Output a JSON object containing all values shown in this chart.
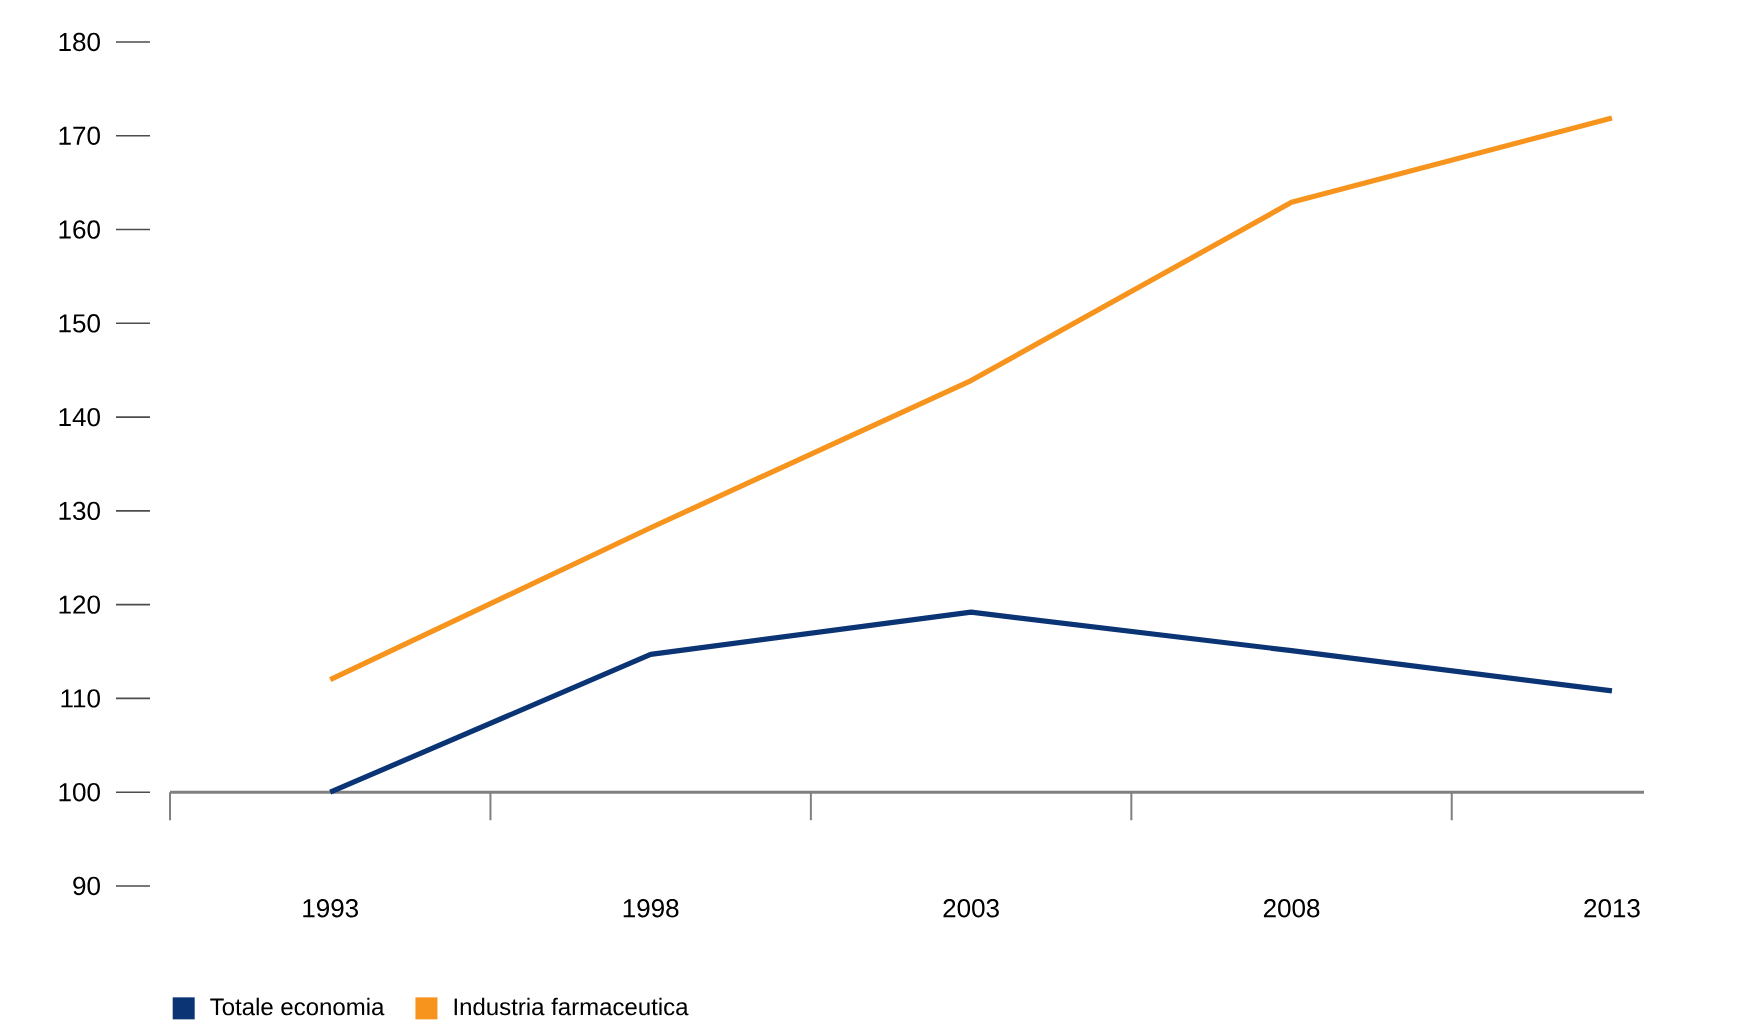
{
  "chart_data": {
    "type": "line",
    "categories": [
      "1993",
      "1998",
      "2003",
      "2008",
      "2013"
    ],
    "series": [
      {
        "name": "Totale economia",
        "color": "#0b3474",
        "values": [
          100,
          114.7,
          119.2,
          115.1,
          110.8
        ]
      },
      {
        "name": "Industria farmaceutica",
        "color": "#f7941d",
        "values": [
          112,
          128.2,
          143.9,
          162.9,
          171.9
        ]
      }
    ],
    "ylim": [
      90,
      180
    ],
    "yticks": [
      90,
      100,
      110,
      120,
      130,
      140,
      150,
      160,
      170,
      180
    ],
    "ref_lines": [
      {
        "axis": "y",
        "value": 100,
        "color": "#808080"
      }
    ],
    "legend": "bottom"
  }
}
